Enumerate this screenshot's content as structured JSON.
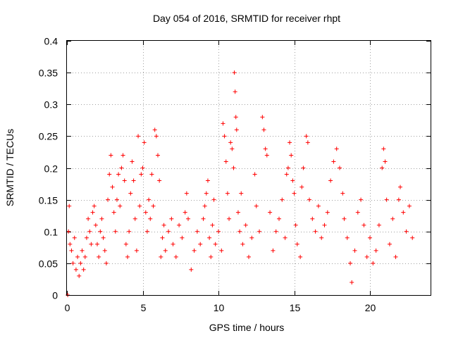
{
  "chart_data": {
    "type": "scatter",
    "title": "Day 054 of 2016, SRMTID for receiver rhpt",
    "xlabel": "GPS time / hours",
    "ylabel": "SRMTID / TECUs",
    "xlim": [
      0,
      24
    ],
    "ylim": [
      0,
      0.4
    ],
    "xticks": [
      0,
      5,
      10,
      15,
      20
    ],
    "xtick_labels": [
      "0",
      "5",
      "10",
      "15",
      "20"
    ],
    "yticks": [
      0,
      0.05,
      0.1,
      0.15,
      0.2,
      0.25,
      0.3,
      0.35,
      0.4
    ],
    "ytick_labels": [
      "0",
      "0.05",
      "0.1",
      "0.15",
      "0.2",
      "0.25",
      "0.3",
      "0.35",
      "0.4"
    ],
    "grid": true,
    "marker": "plus",
    "color": "#ff0000",
    "series": [
      {
        "name": "SRMTID",
        "points": [
          [
            0.05,
            0.0
          ],
          [
            0.1,
            0.1
          ],
          [
            0.15,
            0.14
          ],
          [
            0.2,
            0.08
          ],
          [
            0.3,
            0.07
          ],
          [
            0.4,
            0.05
          ],
          [
            0.5,
            0.09
          ],
          [
            0.6,
            0.04
          ],
          [
            0.7,
            0.06
          ],
          [
            0.8,
            0.03
          ],
          [
            0.9,
            0.05
          ],
          [
            1.0,
            0.07
          ],
          [
            1.1,
            0.04
          ],
          [
            1.2,
            0.06
          ],
          [
            1.3,
            0.09
          ],
          [
            1.4,
            0.12
          ],
          [
            1.5,
            0.1
          ],
          [
            1.6,
            0.08
          ],
          [
            1.7,
            0.13
          ],
          [
            1.8,
            0.14
          ],
          [
            1.9,
            0.11
          ],
          [
            2.0,
            0.08
          ],
          [
            2.1,
            0.06
          ],
          [
            2.2,
            0.1
          ],
          [
            2.3,
            0.12
          ],
          [
            2.4,
            0.09
          ],
          [
            2.5,
            0.07
          ],
          [
            2.6,
            0.05
          ],
          [
            2.7,
            0.15
          ],
          [
            2.8,
            0.19
          ],
          [
            2.9,
            0.22
          ],
          [
            3.0,
            0.17
          ],
          [
            3.1,
            0.13
          ],
          [
            3.2,
            0.1
          ],
          [
            3.3,
            0.15
          ],
          [
            3.4,
            0.19
          ],
          [
            3.5,
            0.14
          ],
          [
            3.6,
            0.2
          ],
          [
            3.7,
            0.22
          ],
          [
            3.8,
            0.18
          ],
          [
            3.9,
            0.08
          ],
          [
            4.0,
            0.06
          ],
          [
            4.1,
            0.1
          ],
          [
            4.2,
            0.16
          ],
          [
            4.3,
            0.21
          ],
          [
            4.4,
            0.18
          ],
          [
            4.5,
            0.12
          ],
          [
            4.6,
            0.07
          ],
          [
            4.7,
            0.25
          ],
          [
            4.8,
            0.14
          ],
          [
            4.9,
            0.19
          ],
          [
            5.0,
            0.2
          ],
          [
            5.1,
            0.24
          ],
          [
            5.2,
            0.13
          ],
          [
            5.3,
            0.1
          ],
          [
            5.4,
            0.15
          ],
          [
            5.5,
            0.12
          ],
          [
            5.6,
            0.19
          ],
          [
            5.7,
            0.14
          ],
          [
            5.8,
            0.26
          ],
          [
            5.9,
            0.25
          ],
          [
            6.0,
            0.22
          ],
          [
            6.1,
            0.18
          ],
          [
            6.2,
            0.06
          ],
          [
            6.3,
            0.09
          ],
          [
            6.4,
            0.11
          ],
          [
            6.5,
            0.07
          ],
          [
            6.7,
            0.1
          ],
          [
            6.9,
            0.12
          ],
          [
            7.0,
            0.08
          ],
          [
            7.2,
            0.06
          ],
          [
            7.4,
            0.11
          ],
          [
            7.6,
            0.09
          ],
          [
            7.8,
            0.13
          ],
          [
            7.9,
            0.16
          ],
          [
            8.0,
            0.12
          ],
          [
            8.2,
            0.04
          ],
          [
            8.4,
            0.07
          ],
          [
            8.6,
            0.1
          ],
          [
            8.8,
            0.08
          ],
          [
            9.0,
            0.12
          ],
          [
            9.1,
            0.14
          ],
          [
            9.2,
            0.16
          ],
          [
            9.3,
            0.18
          ],
          [
            9.4,
            0.09
          ],
          [
            9.5,
            0.06
          ],
          [
            9.6,
            0.11
          ],
          [
            9.7,
            0.15
          ],
          [
            9.8,
            0.08
          ],
          [
            10.0,
            0.1
          ],
          [
            10.2,
            0.07
          ],
          [
            10.3,
            0.27
          ],
          [
            10.4,
            0.25
          ],
          [
            10.5,
            0.21
          ],
          [
            10.6,
            0.16
          ],
          [
            10.7,
            0.12
          ],
          [
            10.8,
            0.24
          ],
          [
            10.9,
            0.23
          ],
          [
            11.0,
            0.2
          ],
          [
            11.05,
            0.35
          ],
          [
            11.1,
            0.32
          ],
          [
            11.15,
            0.28
          ],
          [
            11.2,
            0.26
          ],
          [
            11.3,
            0.13
          ],
          [
            11.4,
            0.1
          ],
          [
            11.5,
            0.16
          ],
          [
            11.6,
            0.08
          ],
          [
            11.8,
            0.11
          ],
          [
            12.0,
            0.06
          ],
          [
            12.2,
            0.09
          ],
          [
            12.4,
            0.19
          ],
          [
            12.5,
            0.14
          ],
          [
            12.7,
            0.1
          ],
          [
            12.9,
            0.28
          ],
          [
            13.0,
            0.26
          ],
          [
            13.1,
            0.23
          ],
          [
            13.2,
            0.22
          ],
          [
            13.4,
            0.13
          ],
          [
            13.6,
            0.07
          ],
          [
            13.8,
            0.1
          ],
          [
            14.0,
            0.12
          ],
          [
            14.2,
            0.15
          ],
          [
            14.4,
            0.09
          ],
          [
            14.5,
            0.19
          ],
          [
            14.6,
            0.2
          ],
          [
            14.7,
            0.24
          ],
          [
            14.8,
            0.22
          ],
          [
            14.9,
            0.18
          ],
          [
            15.0,
            0.16
          ],
          [
            15.1,
            0.11
          ],
          [
            15.2,
            0.08
          ],
          [
            15.4,
            0.06
          ],
          [
            15.5,
            0.17
          ],
          [
            15.6,
            0.2
          ],
          [
            15.8,
            0.25
          ],
          [
            15.9,
            0.24
          ],
          [
            16.0,
            0.15
          ],
          [
            16.2,
            0.12
          ],
          [
            16.4,
            0.1
          ],
          [
            16.6,
            0.14
          ],
          [
            16.8,
            0.09
          ],
          [
            17.0,
            0.11
          ],
          [
            17.2,
            0.13
          ],
          [
            17.4,
            0.18
          ],
          [
            17.6,
            0.21
          ],
          [
            17.8,
            0.23
          ],
          [
            18.0,
            0.2
          ],
          [
            18.2,
            0.16
          ],
          [
            18.3,
            0.12
          ],
          [
            18.5,
            0.09
          ],
          [
            18.7,
            0.05
          ],
          [
            18.8,
            0.02
          ],
          [
            19.0,
            0.07
          ],
          [
            19.2,
            0.13
          ],
          [
            19.4,
            0.15
          ],
          [
            19.6,
            0.11
          ],
          [
            19.8,
            0.06
          ],
          [
            20.0,
            0.09
          ],
          [
            20.2,
            0.05
          ],
          [
            20.4,
            0.07
          ],
          [
            20.6,
            0.11
          ],
          [
            20.8,
            0.2
          ],
          [
            20.9,
            0.23
          ],
          [
            21.0,
            0.21
          ],
          [
            21.1,
            0.15
          ],
          [
            21.3,
            0.08
          ],
          [
            21.5,
            0.12
          ],
          [
            21.7,
            0.06
          ],
          [
            21.9,
            0.15
          ],
          [
            22.0,
            0.17
          ],
          [
            22.2,
            0.13
          ],
          [
            22.4,
            0.1
          ],
          [
            22.6,
            0.14
          ],
          [
            22.8,
            0.09
          ]
        ]
      }
    ]
  }
}
